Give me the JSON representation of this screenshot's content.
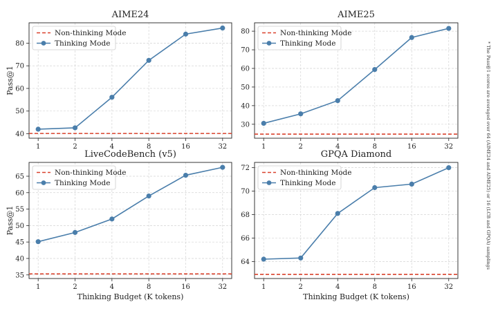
{
  "chart_data": [
    {
      "type": "line",
      "title": "AIME24",
      "xlabel": "",
      "ylabel": "Pass@1",
      "x_scale": "log2",
      "categories": [
        "1",
        "2",
        "4",
        "8",
        "16",
        "32"
      ],
      "yticks": [
        40,
        50,
        60,
        70,
        80
      ],
      "ylim": [
        38,
        89
      ],
      "grid": true,
      "legend_position": "top-left",
      "series": [
        {
          "name": "Non-thinking Mode",
          "style": "dashed-horizontal",
          "color": "#d9402b",
          "value": 40.1
        },
        {
          "name": "Thinking Mode",
          "style": "line-markers",
          "color": "#4a7eab",
          "values": [
            42.0,
            42.6,
            56.1,
            72.4,
            84.0,
            86.7
          ]
        }
      ]
    },
    {
      "type": "line",
      "title": "AIME25",
      "xlabel": "",
      "ylabel": "",
      "x_scale": "log2",
      "categories": [
        "1",
        "2",
        "4",
        "8",
        "16",
        "32"
      ],
      "yticks": [
        30,
        40,
        50,
        60,
        70,
        80
      ],
      "ylim": [
        22.5,
        84.5
      ],
      "grid": true,
      "legend_position": "top-left",
      "series": [
        {
          "name": "Non-thinking Mode",
          "style": "dashed-horizontal",
          "color": "#d9402b",
          "value": 24.7
        },
        {
          "name": "Thinking Mode",
          "style": "line-markers",
          "color": "#4a7eab",
          "values": [
            30.5,
            35.6,
            42.7,
            59.4,
            76.6,
            81.5
          ]
        }
      ]
    },
    {
      "type": "line",
      "title": "LiveCodeBench (v5)",
      "xlabel": "Thinking Budget (K tokens)",
      "ylabel": "Pass@1",
      "x_scale": "log2",
      "categories": [
        "1",
        "2",
        "4",
        "8",
        "16",
        "32"
      ],
      "yticks": [
        35,
        40,
        45,
        50,
        55,
        60,
        65
      ],
      "ylim": [
        33.9,
        69.2
      ],
      "grid": true,
      "legend_position": "top-left",
      "series": [
        {
          "name": "Non-thinking Mode",
          "style": "dashed-horizontal",
          "color": "#d9402b",
          "value": 35.3
        },
        {
          "name": "Thinking Mode",
          "style": "line-markers",
          "color": "#4a7eab",
          "values": [
            45.1,
            47.9,
            52.0,
            59.0,
            65.3,
            67.7
          ]
        }
      ]
    },
    {
      "type": "line",
      "title": "GPQA Diamond",
      "xlabel": "Thinking Budget (K tokens)",
      "ylabel": "",
      "x_scale": "log2",
      "categories": [
        "1",
        "2",
        "4",
        "8",
        "16",
        "32"
      ],
      "yticks": [
        64,
        66,
        68,
        70,
        72
      ],
      "ylim": [
        62.55,
        72.45
      ],
      "grid": true,
      "legend_position": "top-left",
      "series": [
        {
          "name": "Non-thinking Mode",
          "style": "dashed-horizontal",
          "color": "#d9402b",
          "value": 62.9
        },
        {
          "name": "Thinking Mode",
          "style": "line-markers",
          "color": "#4a7eab",
          "values": [
            64.2,
            64.3,
            68.1,
            70.3,
            70.6,
            72.0
          ]
        }
      ]
    }
  ],
  "footnote": "* The Pass@1 scores are averaged over 64 (AIME24 and AIME25) or 16 (LCB and GPQA) samplings"
}
